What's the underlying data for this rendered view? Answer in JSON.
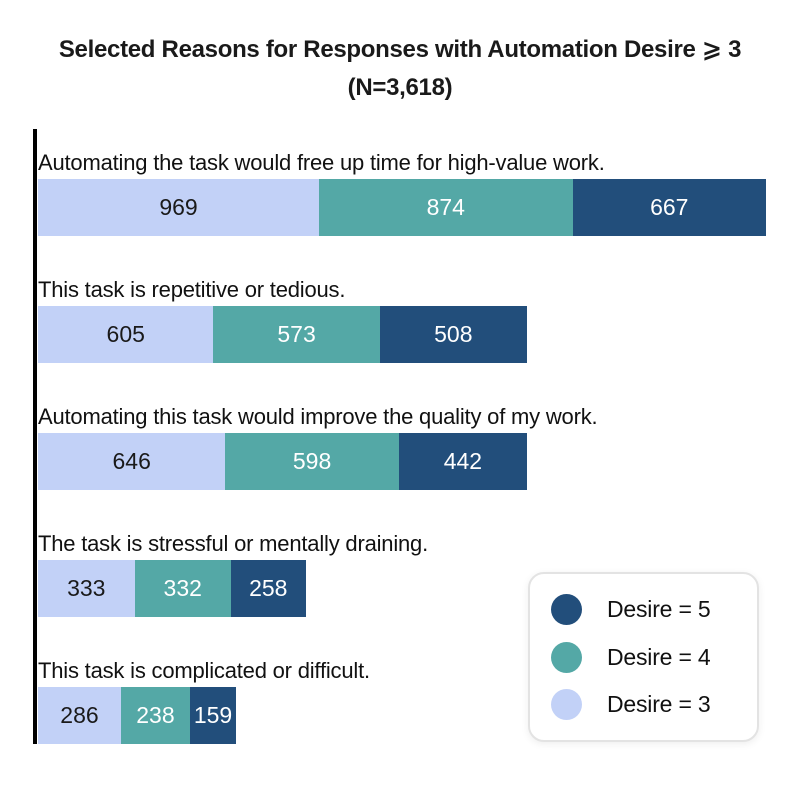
{
  "title": {
    "line1": "Selected Reasons for Responses with Automation Desire ⩾ 3",
    "line2": "(N=3,618)"
  },
  "colors": {
    "desire5": "#224E7B",
    "desire4": "#54A8A6",
    "desire3": "#C2D1F7",
    "axis": "#000000",
    "label_text": "#111111",
    "value_on_light": "#1A1A1A",
    "value_on_dark": "#FFFFFF"
  },
  "legend": {
    "items": [
      {
        "label": "Desire = 5",
        "color": "#224E7B"
      },
      {
        "label": "Desire = 4",
        "color": "#54A8A6"
      },
      {
        "label": "Desire = 3",
        "color": "#C2D1F7"
      }
    ]
  },
  "chart_data": {
    "type": "bar",
    "orientation": "horizontal",
    "stacked": true,
    "title": "Selected Reasons for Responses with Automation Desire ⩾ 3 (N=3,618)",
    "categories": [
      "Automating the task would free up time for high-value work.",
      "This task is repetitive or tedious.",
      "Automating this task would improve the quality of my work.",
      "The task is stressful or mentally draining.",
      "This task is complicated or difficult."
    ],
    "series": [
      {
        "name": "Desire = 3",
        "color": "#C2D1F7",
        "value_text_color": "#1A1A1A",
        "values": [
          969,
          605,
          646,
          333,
          286
        ]
      },
      {
        "name": "Desire = 4",
        "color": "#54A8A6",
        "value_text_color": "#FFFFFF",
        "values": [
          874,
          573,
          598,
          332,
          238
        ]
      },
      {
        "name": "Desire = 5",
        "color": "#224E7B",
        "value_text_color": "#FFFFFF",
        "values": [
          667,
          508,
          442,
          258,
          159
        ]
      }
    ],
    "totals": [
      2510,
      1686,
      1686,
      923,
      683
    ],
    "xlim": [
      0,
      2510
    ],
    "legend_position": "lower right",
    "grid": false
  }
}
